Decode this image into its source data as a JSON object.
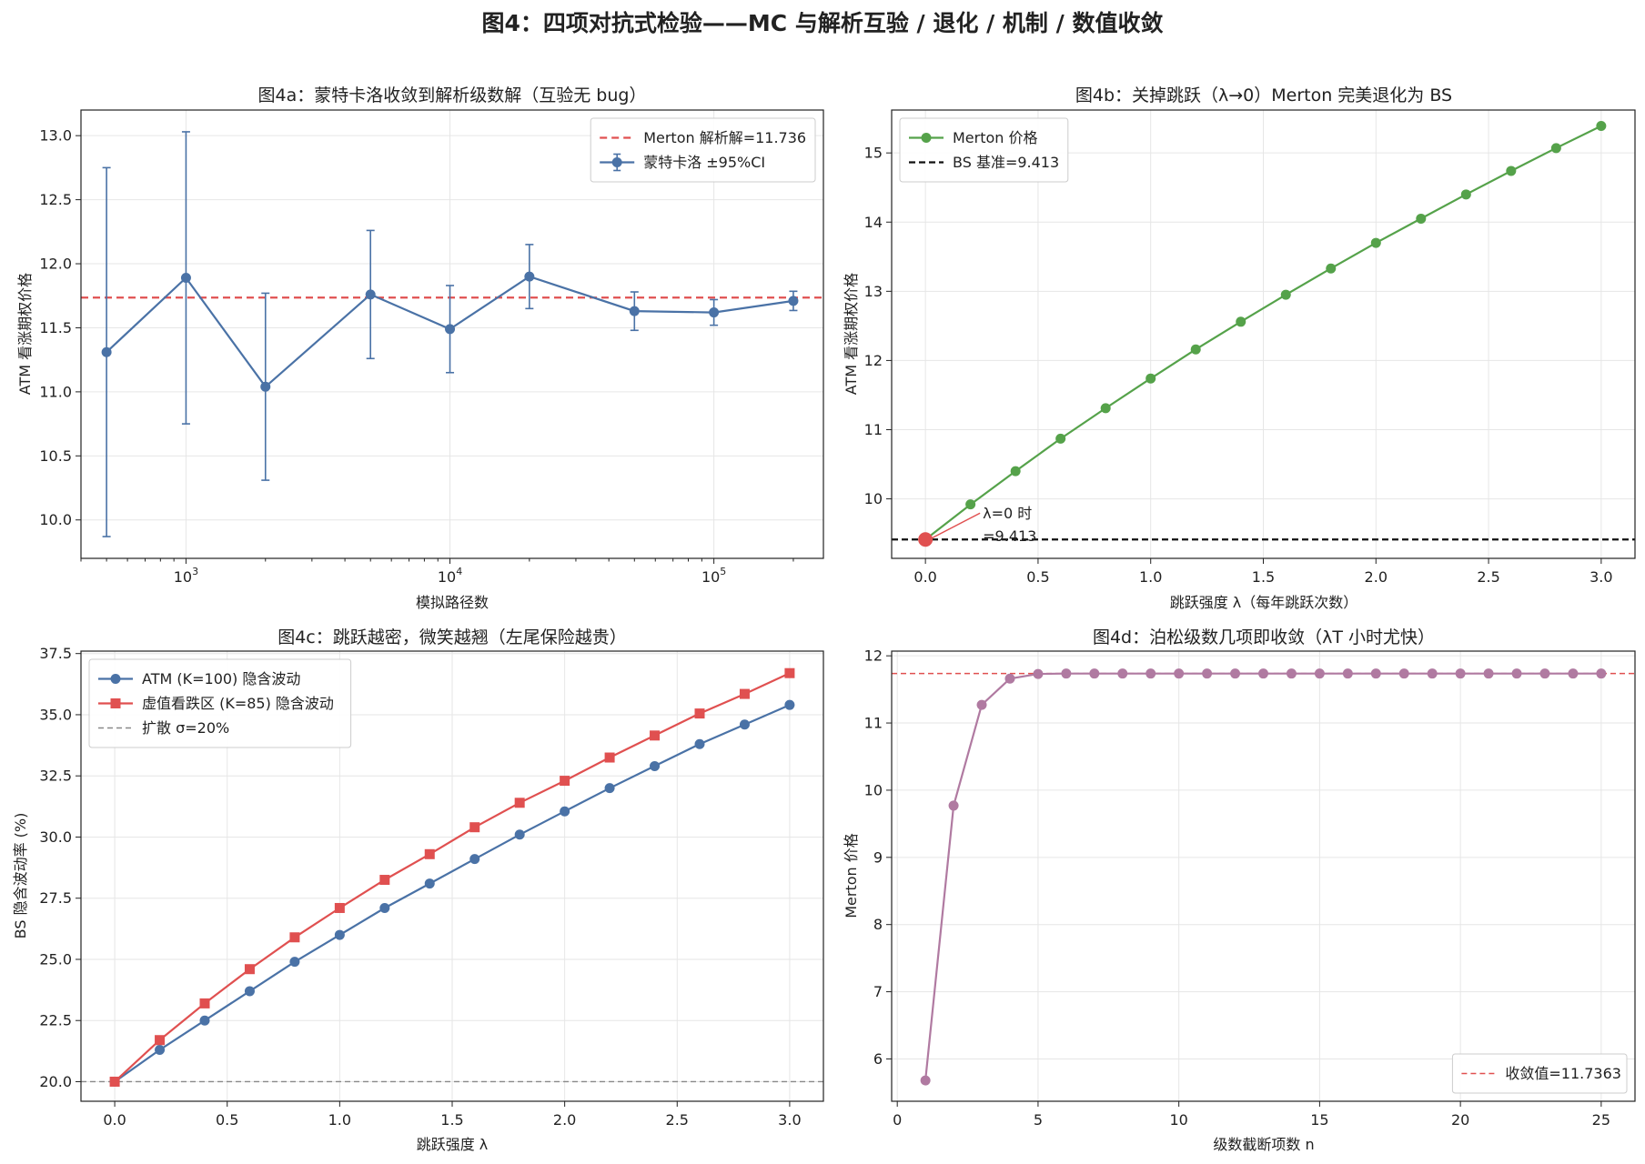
{
  "suptitle": "图4：四项对抗式检验——MC 与解析互验 / 退化 / 机制 / 数值收敛",
  "colors": {
    "blue": "#4a72a6",
    "red": "#e05050",
    "green": "#55a24a",
    "purple": "#b07aa1",
    "black": "#111111",
    "gray": "#888888"
  },
  "chart_data": [
    {
      "id": "a",
      "type": "line",
      "title": "图4a：蒙特卡洛收敛到解析级数解（互验无 bug）",
      "xlabel": "模拟路径数",
      "ylabel": "ATM 看涨期权价格",
      "xscale": "log",
      "xlim": [
        400,
        260000
      ],
      "ylim": [
        9.7,
        13.2
      ],
      "xticks": [
        1000,
        10000,
        100000
      ],
      "xticklabels": [
        "10",
        "10",
        "10"
      ],
      "xtickexp": [
        "3",
        "4",
        "5"
      ],
      "yticks": [
        10.0,
        10.5,
        11.0,
        11.5,
        12.0,
        12.5,
        13.0
      ],
      "yticklabels": [
        "10.0",
        "10.5",
        "11.0",
        "11.5",
        "12.0",
        "12.5",
        "13.0"
      ],
      "series": [
        {
          "name": "蒙特卡洛 ±95%CI",
          "color": "blue",
          "marker": "circle",
          "x": [
            500,
            1000,
            2000,
            5000,
            10000,
            20000,
            50000,
            100000,
            200000
          ],
          "y": [
            11.31,
            11.89,
            11.04,
            11.76,
            11.49,
            11.9,
            11.63,
            11.62,
            11.71
          ],
          "err": [
            1.44,
            1.14,
            0.73,
            0.5,
            0.34,
            0.25,
            0.15,
            0.1,
            0.075
          ]
        }
      ],
      "hlines": [
        {
          "name": "Merton 解析解=11.736",
          "y": 11.736,
          "color": "red",
          "dash": "8,5",
          "width": 2.2
        }
      ],
      "legend": "upper right"
    },
    {
      "id": "b",
      "type": "line",
      "title": "图4b：关掉跳跃（λ→0）Merton 完美退化为 BS",
      "xlabel": "跳跃强度 λ（每年跳跃次数）",
      "ylabel": "ATM 看涨期权价格",
      "xlim": [
        -0.15,
        3.15
      ],
      "ylim": [
        9.14,
        15.62
      ],
      "xticks": [
        0.0,
        0.5,
        1.0,
        1.5,
        2.0,
        2.5,
        3.0
      ],
      "xticklabels": [
        "0.0",
        "0.5",
        "1.0",
        "1.5",
        "2.0",
        "2.5",
        "3.0"
      ],
      "yticks": [
        10,
        11,
        12,
        13,
        14,
        15
      ],
      "yticklabels": [
        "10",
        "11",
        "12",
        "13",
        "14",
        "15"
      ],
      "series": [
        {
          "name": "Merton 价格",
          "color": "green",
          "marker": "circle",
          "x": [
            0.0,
            0.2,
            0.4,
            0.6,
            0.8,
            1.0,
            1.2,
            1.4,
            1.6,
            1.8,
            2.0,
            2.2,
            2.4,
            2.6,
            2.8,
            3.0
          ],
          "y": [
            9.413,
            9.92,
            10.4,
            10.87,
            11.31,
            11.74,
            12.16,
            12.56,
            12.95,
            13.33,
            13.7,
            14.05,
            14.4,
            14.74,
            15.07,
            15.39
          ]
        }
      ],
      "hlines": [
        {
          "name": "BS 基准=9.413",
          "y": 9.413,
          "color": "black",
          "dash": "7,4",
          "width": 2.2
        }
      ],
      "annotation": {
        "line1": "λ=0 时",
        "line2": "=9.413",
        "x": 0.0,
        "y": 9.413
      },
      "legend": "upper left"
    },
    {
      "id": "c",
      "type": "line",
      "title": "图4c：跳跃越密，微笑越翘（左尾保险越贵）",
      "xlabel": "跳跃强度 λ",
      "ylabel": "BS 隐含波动率 (%)",
      "xlim": [
        -0.15,
        3.15
      ],
      "ylim": [
        19.2,
        37.6
      ],
      "xticks": [
        0.0,
        0.5,
        1.0,
        1.5,
        2.0,
        2.5,
        3.0
      ],
      "xticklabels": [
        "0.0",
        "0.5",
        "1.0",
        "1.5",
        "2.0",
        "2.5",
        "3.0"
      ],
      "yticks": [
        20.0,
        22.5,
        25.0,
        27.5,
        30.0,
        32.5,
        35.0,
        37.5
      ],
      "yticklabels": [
        "20.0",
        "22.5",
        "25.0",
        "27.5",
        "30.0",
        "32.5",
        "35.0",
        "37.5"
      ],
      "series": [
        {
          "name": "ATM (K=100) 隐含波动",
          "color": "blue",
          "marker": "circle",
          "x": [
            0.0,
            0.2,
            0.4,
            0.6,
            0.8,
            1.0,
            1.2,
            1.4,
            1.6,
            1.8,
            2.0,
            2.2,
            2.4,
            2.6,
            2.8,
            3.0
          ],
          "y": [
            20.0,
            21.3,
            22.5,
            23.7,
            24.9,
            26.0,
            27.1,
            28.1,
            29.1,
            30.1,
            31.05,
            32.0,
            32.9,
            33.8,
            34.6,
            35.4
          ]
        },
        {
          "name": "虚值看跌区 (K=85) 隐含波动",
          "color": "red",
          "marker": "square",
          "x": [
            0.0,
            0.2,
            0.4,
            0.6,
            0.8,
            1.0,
            1.2,
            1.4,
            1.6,
            1.8,
            2.0,
            2.2,
            2.4,
            2.6,
            2.8,
            3.0
          ],
          "y": [
            20.0,
            21.7,
            23.2,
            24.6,
            25.9,
            27.1,
            28.25,
            29.3,
            30.4,
            31.4,
            32.3,
            33.25,
            34.15,
            35.05,
            35.85,
            36.7
          ]
        }
      ],
      "hlines": [
        {
          "name": "扩散 σ=20%",
          "y": 20.0,
          "color": "gray",
          "dash": "6,4",
          "width": 1.4
        }
      ],
      "legend": "upper left"
    },
    {
      "id": "d",
      "type": "line",
      "title": "图4d：泊松级数几项即收敛（λT 小时尤快）",
      "xlabel": "级数截断项数 n",
      "ylabel": "Merton 价格",
      "xlim": [
        -0.2,
        26.2
      ],
      "ylim": [
        5.37,
        12.07
      ],
      "xticks": [
        0,
        5,
        10,
        15,
        20,
        25
      ],
      "xticklabels": [
        "0",
        "5",
        "10",
        "15",
        "20",
        "25"
      ],
      "yticks": [
        6,
        7,
        8,
        9,
        10,
        11,
        12
      ],
      "yticklabels": [
        "6",
        "7",
        "8",
        "9",
        "10",
        "11",
        "12"
      ],
      "series": [
        {
          "name": "",
          "color": "purple",
          "marker": "circle",
          "x": [
            1,
            2,
            3,
            4,
            5,
            6,
            7,
            8,
            9,
            10,
            11,
            12,
            13,
            14,
            15,
            16,
            17,
            18,
            19,
            20,
            21,
            22,
            23,
            24,
            25
          ],
          "y": [
            5.68,
            9.77,
            11.27,
            11.66,
            11.73,
            11.736,
            11.736,
            11.736,
            11.736,
            11.736,
            11.736,
            11.736,
            11.736,
            11.736,
            11.736,
            11.736,
            11.736,
            11.736,
            11.736,
            11.736,
            11.736,
            11.736,
            11.736,
            11.736,
            11.736
          ]
        }
      ],
      "hlines": [
        {
          "name": "收敛值=11.7363",
          "y": 11.7363,
          "color": "red",
          "dash": "6,4",
          "width": 1.5
        }
      ],
      "legend": "lower right"
    }
  ]
}
